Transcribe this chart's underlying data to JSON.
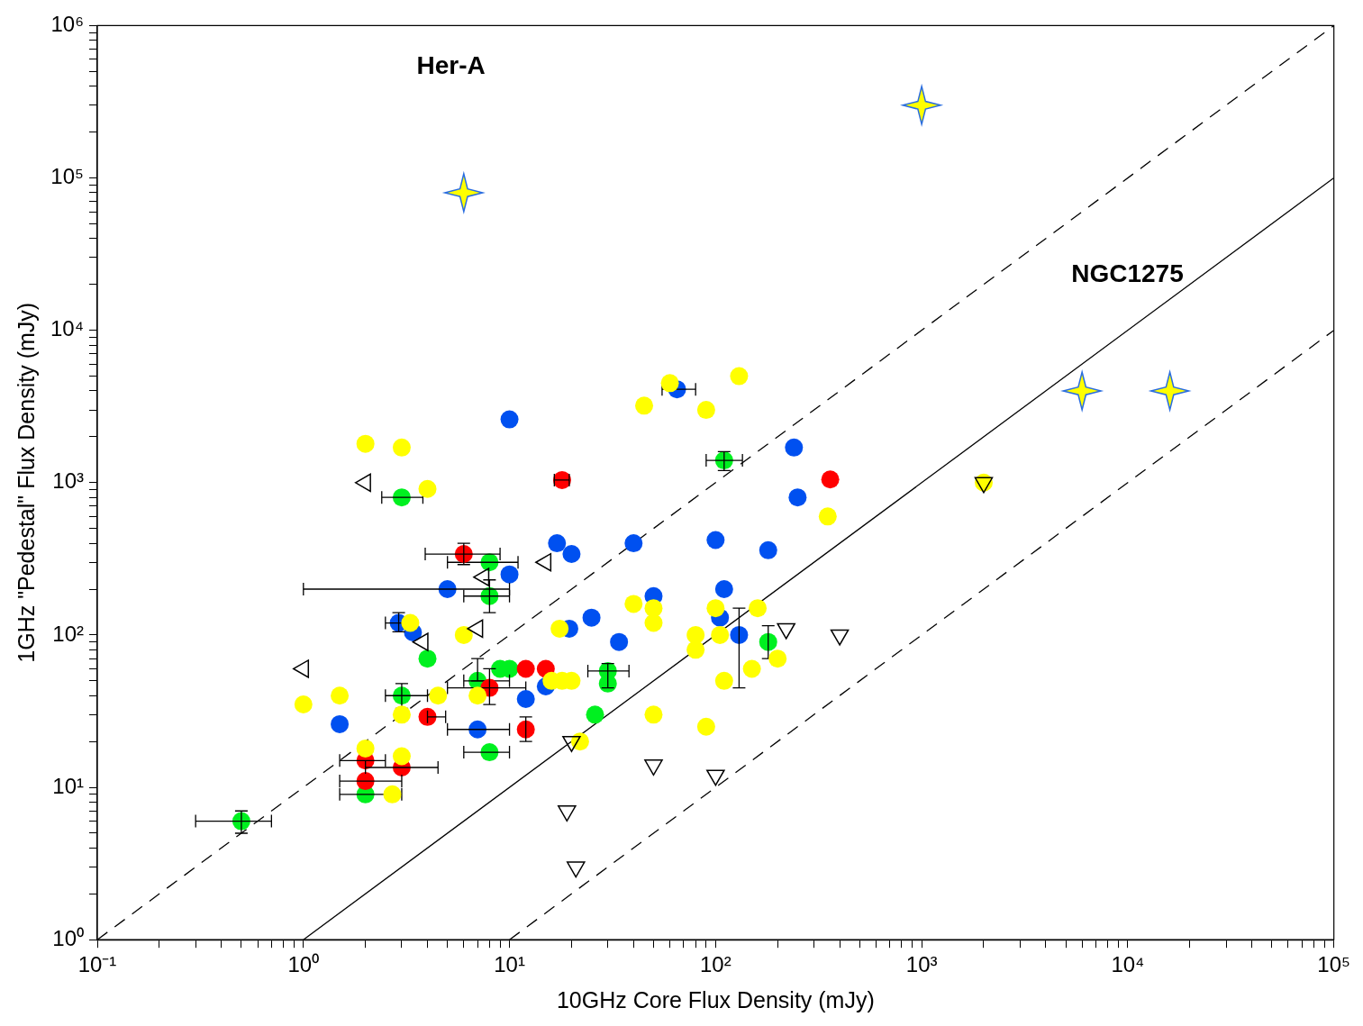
{
  "chart_data": {
    "type": "scatter",
    "xlabel": "10GHz Core Flux Density (mJy)",
    "ylabel": "1GHz \"Pedestal\" Flux Density (mJy)",
    "log": "xy",
    "grid": false,
    "legend": false,
    "xlim": [
      0.1,
      100000
    ],
    "ylim": [
      1,
      1000000
    ],
    "xticks": [
      {
        "value": 0.1,
        "label": "10⁻¹"
      },
      {
        "value": 0.2,
        "label": null
      },
      {
        "value": 0.3,
        "label": null
      },
      {
        "value": 0.4,
        "label": null
      },
      {
        "value": 0.5,
        "label": null
      },
      {
        "value": 0.6,
        "label": null
      },
      {
        "value": 0.7,
        "label": null
      },
      {
        "value": 0.8,
        "label": null
      },
      {
        "value": 0.9,
        "label": null
      },
      {
        "value": 1,
        "label": "10⁰"
      },
      {
        "value": 2,
        "label": null
      },
      {
        "value": 3,
        "label": null
      },
      {
        "value": 4,
        "label": null
      },
      {
        "value": 5,
        "label": null
      },
      {
        "value": 6,
        "label": null
      },
      {
        "value": 7,
        "label": null
      },
      {
        "value": 8,
        "label": null
      },
      {
        "value": 9,
        "label": null
      },
      {
        "value": 10,
        "label": "10¹"
      },
      {
        "value": 20,
        "label": null
      },
      {
        "value": 30,
        "label": null
      },
      {
        "value": 40,
        "label": null
      },
      {
        "value": 50,
        "label": null
      },
      {
        "value": 60,
        "label": null
      },
      {
        "value": 70,
        "label": null
      },
      {
        "value": 80,
        "label": null
      },
      {
        "value": 90,
        "label": null
      },
      {
        "value": 100,
        "label": "10²"
      },
      {
        "value": 200,
        "label": null
      },
      {
        "value": 300,
        "label": null
      },
      {
        "value": 400,
        "label": null
      },
      {
        "value": 500,
        "label": null
      },
      {
        "value": 600,
        "label": null
      },
      {
        "value": 700,
        "label": null
      },
      {
        "value": 800,
        "label": null
      },
      {
        "value": 900,
        "label": null
      },
      {
        "value": 1000,
        "label": "10³"
      },
      {
        "value": 2000,
        "label": null
      },
      {
        "value": 3000,
        "label": null
      },
      {
        "value": 4000,
        "label": null
      },
      {
        "value": 5000,
        "label": null
      },
      {
        "value": 6000,
        "label": null
      },
      {
        "value": 7000,
        "label": null
      },
      {
        "value": 8000,
        "label": null
      },
      {
        "value": 9000,
        "label": null
      },
      {
        "value": 10000,
        "label": "10⁴"
      },
      {
        "value": 20000,
        "label": null
      },
      {
        "value": 30000,
        "label": null
      },
      {
        "value": 40000,
        "label": null
      },
      {
        "value": 50000,
        "label": null
      },
      {
        "value": 60000,
        "label": null
      },
      {
        "value": 70000,
        "label": null
      },
      {
        "value": 80000,
        "label": null
      },
      {
        "value": 90000,
        "label": null
      },
      {
        "value": 100000,
        "label": "10⁵"
      }
    ],
    "yticks": [
      {
        "value": 1,
        "label": "10⁰"
      },
      {
        "value": 2,
        "label": null
      },
      {
        "value": 3,
        "label": null
      },
      {
        "value": 4,
        "label": null
      },
      {
        "value": 5,
        "label": null
      },
      {
        "value": 6,
        "label": null
      },
      {
        "value": 7,
        "label": null
      },
      {
        "value": 8,
        "label": null
      },
      {
        "value": 9,
        "label": null
      },
      {
        "value": 10,
        "label": "10¹"
      },
      {
        "value": 20,
        "label": null
      },
      {
        "value": 30,
        "label": null
      },
      {
        "value": 40,
        "label": null
      },
      {
        "value": 50,
        "label": null
      },
      {
        "value": 60,
        "label": null
      },
      {
        "value": 70,
        "label": null
      },
      {
        "value": 80,
        "label": null
      },
      {
        "value": 90,
        "label": null
      },
      {
        "value": 100,
        "label": "10²"
      },
      {
        "value": 200,
        "label": null
      },
      {
        "value": 300,
        "label": null
      },
      {
        "value": 400,
        "label": null
      },
      {
        "value": 500,
        "label": null
      },
      {
        "value": 600,
        "label": null
      },
      {
        "value": 700,
        "label": null
      },
      {
        "value": 800,
        "label": null
      },
      {
        "value": 900,
        "label": null
      },
      {
        "value": 1000,
        "label": "10³"
      },
      {
        "value": 2000,
        "label": null
      },
      {
        "value": 3000,
        "label": null
      },
      {
        "value": 4000,
        "label": null
      },
      {
        "value": 5000,
        "label": null
      },
      {
        "value": 6000,
        "label": null
      },
      {
        "value": 7000,
        "label": null
      },
      {
        "value": 8000,
        "label": null
      },
      {
        "value": 9000,
        "label": null
      },
      {
        "value": 10000,
        "label": "10⁴"
      },
      {
        "value": 20000,
        "label": null
      },
      {
        "value": 30000,
        "label": null
      },
      {
        "value": 40000,
        "label": null
      },
      {
        "value": 50000,
        "label": null
      },
      {
        "value": 60000,
        "label": null
      },
      {
        "value": 70000,
        "label": null
      },
      {
        "value": 80000,
        "label": null
      },
      {
        "value": 90000,
        "label": null
      },
      {
        "value": 100000,
        "label": "10⁵"
      },
      {
        "value": 200000,
        "label": null
      },
      {
        "value": 300000,
        "label": null
      },
      {
        "value": 400000,
        "label": null
      },
      {
        "value": 500000,
        "label": null
      },
      {
        "value": 600000,
        "label": null
      },
      {
        "value": 700000,
        "label": null
      },
      {
        "value": 800000,
        "label": null
      },
      {
        "value": 900000,
        "label": null
      },
      {
        "value": 1000000,
        "label": "10⁶"
      }
    ],
    "annotations": [
      "Her-A",
      "NGC1275"
    ],
    "series": [
      {
        "type": "line",
        "color": "#000000",
        "marker": "none",
        "line_style": "dashed",
        "x": [
          0.1,
          100000
        ],
        "values": [
          1,
          1000000
        ]
      },
      {
        "type": "line",
        "color": "#000000",
        "marker": "none",
        "line_style": "solid",
        "x": [
          1,
          100000
        ],
        "values": [
          1,
          100000
        ]
      },
      {
        "type": "line",
        "color": "#000000",
        "marker": "none",
        "line_style": "dashed",
        "x": [
          10,
          100000
        ],
        "values": [
          1,
          10000
        ]
      },
      {
        "color": "#00f020",
        "marker": "circle",
        "x": [
          0.5,
          2,
          3,
          110,
          8,
          8,
          4,
          3,
          7,
          9,
          10,
          8,
          30,
          30,
          26,
          180
        ],
        "values": [
          6,
          9,
          800,
          1400,
          300,
          180,
          70,
          40,
          50,
          60,
          60,
          17,
          58,
          48,
          30,
          90
        ],
        "xerrors": [
          [
            0.3,
            0.7
          ],
          [
            1.5,
            3
          ],
          [
            2.4,
            3.8
          ],
          [
            90,
            135
          ],
          [
            5,
            11
          ],
          [
            6,
            10
          ],
          null,
          [
            2.5,
            4
          ],
          [
            6,
            10
          ],
          null,
          null,
          [
            6,
            10
          ],
          [
            24,
            38
          ],
          null,
          null,
          null
        ],
        "errors": [
          [
            5,
            7
          ],
          null,
          null,
          [
            1200,
            1600
          ],
          null,
          [
            140,
            230
          ],
          null,
          [
            33,
            48
          ],
          [
            50,
            70
          ],
          null,
          null,
          null,
          [
            45,
            65
          ],
          null,
          null,
          [
            70,
            115
          ]
        ]
      },
      {
        "color": "#ff0000",
        "marker": "circle",
        "x": [
          6,
          18,
          360,
          12,
          15,
          8,
          12,
          4,
          2,
          2,
          3
        ],
        "values": [
          340,
          1040,
          1050,
          60,
          60,
          45,
          24,
          29,
          15,
          11,
          13.5
        ],
        "xerrors": [
          [
            3.9,
            9
          ],
          [
            16.5,
            19.5
          ],
          null,
          null,
          null,
          [
            5,
            12
          ],
          null,
          [
            4,
            4.9
          ],
          [
            1.5,
            2.5
          ],
          [
            1.5,
            3
          ],
          [
            2,
            4.5
          ]
        ],
        "errors": [
          [
            290,
            400
          ],
          null,
          null,
          null,
          null,
          [
            35,
            60
          ],
          [
            20,
            29
          ],
          null,
          null,
          null,
          null
        ]
      },
      {
        "color": "#0050f0",
        "marker": "circle",
        "x": [
          10,
          65,
          240,
          250,
          100,
          180,
          40,
          17,
          20,
          10,
          5,
          110,
          25,
          34,
          50,
          105,
          130,
          2.9,
          3.4,
          19.5,
          12,
          15,
          7,
          1.5
        ],
        "values": [
          2600,
          4100,
          1700,
          800,
          420,
          360,
          400,
          400,
          340,
          250,
          200,
          200,
          130,
          90,
          180,
          130,
          100,
          120,
          104,
          110,
          38,
          46,
          24,
          26
        ],
        "xerrors": [
          null,
          [
            55,
            80
          ],
          null,
          null,
          null,
          null,
          null,
          null,
          null,
          null,
          [
            1,
            10
          ],
          null,
          null,
          null,
          null,
          null,
          null,
          [
            2.5,
            3.5
          ],
          null,
          null,
          null,
          null,
          [
            5,
            10
          ],
          null
        ],
        "errors": [
          null,
          null,
          null,
          null,
          null,
          null,
          null,
          null,
          null,
          null,
          null,
          null,
          null,
          null,
          null,
          null,
          [
            45,
            150
          ],
          [
            105,
            140
          ],
          null,
          null,
          null,
          null,
          null,
          null
        ]
      },
      {
        "color": "#ffff00",
        "marker": "circle",
        "x": [
          2,
          3,
          4,
          60,
          130,
          45,
          90,
          350,
          2000,
          40,
          50,
          50,
          100,
          160,
          80,
          80,
          105,
          200,
          150,
          110,
          90,
          50,
          22,
          17.5,
          16,
          18,
          20,
          7,
          6,
          3.3,
          4.5,
          3,
          2,
          3,
          2.7,
          1,
          1.5
        ],
        "values": [
          1800,
          1700,
          910,
          4500,
          5000,
          3200,
          3000,
          600,
          1000,
          160,
          150,
          120,
          150,
          150,
          100,
          80,
          100,
          70,
          60,
          50,
          25,
          30,
          20,
          110,
          50,
          50,
          50,
          40,
          100,
          120,
          40,
          30,
          18,
          16,
          9,
          35,
          40
        ]
      },
      {
        "color": "#ffff00",
        "marker": "star",
        "x": [
          6,
          1000,
          6000,
          16000
        ],
        "values": [
          80000,
          300000,
          4000,
          4000
        ]
      },
      {
        "color": "#000000",
        "marker": "triangle",
        "x": [
          2000,
          400,
          220,
          50,
          100,
          20,
          19,
          21
        ],
        "values": [
          1000,
          100,
          110,
          14,
          12,
          20,
          7,
          3
        ]
      },
      {
        "color": "#000000",
        "marker": "triangle",
        "x": [
          2,
          1,
          15,
          7.5,
          7,
          3.8
        ],
        "values": [
          1000,
          60,
          300,
          240,
          110,
          90
        ]
      }
    ]
  }
}
